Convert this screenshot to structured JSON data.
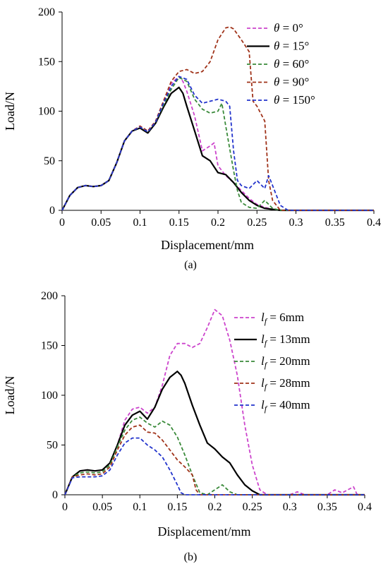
{
  "chart_data": [
    {
      "type": "line",
      "panel_label": "(a)",
      "xlabel": "Displacement/mm",
      "ylabel": "Load/N",
      "xlim": [
        0,
        0.4
      ],
      "ylim": [
        0,
        200
      ],
      "xticks": [
        0,
        0.05,
        0.1,
        0.15,
        0.2,
        0.25,
        0.3,
        0.35,
        0.4
      ],
      "xtick_labels": [
        "0",
        "0.05",
        "0.1",
        "0.15",
        "0.2",
        "0.25",
        "0.3",
        "0.35",
        "0.4"
      ],
      "yticks": [
        0,
        50,
        100,
        150,
        200
      ],
      "ytick_labels": [
        "0",
        "50",
        "100",
        "150",
        "200"
      ],
      "grid": false,
      "legend_position": "top-right",
      "series": [
        {
          "name": "θ = 0°",
          "legend_prefix": "θ",
          "legend_suffix": " = 0°",
          "color": "#cc44cc",
          "dash": "dashed",
          "x": [
            0,
            0.01,
            0.02,
            0.03,
            0.04,
            0.05,
            0.06,
            0.07,
            0.08,
            0.09,
            0.1,
            0.11,
            0.12,
            0.13,
            0.14,
            0.15,
            0.155,
            0.16,
            0.17,
            0.18,
            0.19,
            0.195,
            0.2,
            0.21,
            0.22,
            0.23,
            0.24,
            0.25,
            0.26,
            0.27,
            0.28,
            0.3,
            0.4
          ],
          "y": [
            0,
            15,
            23,
            25,
            24,
            25,
            30,
            48,
            70,
            80,
            85,
            80,
            90,
            110,
            128,
            135,
            130,
            120,
            95,
            60,
            65,
            68,
            45,
            35,
            28,
            20,
            12,
            6,
            3,
            1,
            0,
            0,
            0
          ]
        },
        {
          "name": "θ = 15°",
          "legend_prefix": "θ",
          "legend_suffix": " = 15°",
          "color": "#000000",
          "dash": "solid",
          "x": [
            0,
            0.01,
            0.02,
            0.03,
            0.04,
            0.05,
            0.06,
            0.07,
            0.08,
            0.09,
            0.1,
            0.11,
            0.12,
            0.13,
            0.14,
            0.15,
            0.155,
            0.16,
            0.17,
            0.18,
            0.19,
            0.2,
            0.21,
            0.22,
            0.23,
            0.24,
            0.25,
            0.26,
            0.27,
            0.28,
            0.4
          ],
          "y": [
            0,
            15,
            23,
            25,
            24,
            25,
            30,
            48,
            70,
            80,
            83,
            78,
            88,
            104,
            118,
            124,
            118,
            105,
            80,
            55,
            50,
            38,
            36,
            28,
            18,
            10,
            5,
            2,
            1,
            0,
            0
          ]
        },
        {
          "name": "θ = 60°",
          "legend_prefix": "θ",
          "legend_suffix": " = 60°",
          "color": "#3a8a3a",
          "dash": "dashed",
          "x": [
            0,
            0.01,
            0.02,
            0.03,
            0.04,
            0.05,
            0.06,
            0.07,
            0.08,
            0.09,
            0.1,
            0.11,
            0.12,
            0.13,
            0.14,
            0.15,
            0.16,
            0.17,
            0.18,
            0.19,
            0.2,
            0.205,
            0.21,
            0.22,
            0.225,
            0.23,
            0.24,
            0.25,
            0.26,
            0.27,
            0.28,
            0.4
          ],
          "y": [
            0,
            15,
            23,
            25,
            24,
            25,
            30,
            48,
            70,
            80,
            84,
            79,
            89,
            106,
            122,
            134,
            130,
            112,
            102,
            98,
            100,
            108,
            85,
            40,
            20,
            8,
            3,
            2,
            10,
            2,
            0,
            0
          ]
        },
        {
          "name": "θ = 90°",
          "legend_prefix": "θ",
          "legend_suffix": " = 90°",
          "color": "#a0331a",
          "dash": "dashed",
          "x": [
            0,
            0.01,
            0.02,
            0.03,
            0.04,
            0.05,
            0.06,
            0.07,
            0.08,
            0.09,
            0.1,
            0.11,
            0.12,
            0.13,
            0.14,
            0.15,
            0.16,
            0.17,
            0.18,
            0.19,
            0.2,
            0.21,
            0.215,
            0.22,
            0.23,
            0.24,
            0.245,
            0.25,
            0.26,
            0.265,
            0.27,
            0.28,
            0.4
          ],
          "y": [
            0,
            15,
            23,
            25,
            24,
            25,
            30,
            48,
            70,
            80,
            85,
            80,
            90,
            110,
            130,
            140,
            142,
            138,
            140,
            150,
            172,
            184,
            185,
            183,
            172,
            160,
            110,
            105,
            90,
            30,
            10,
            0,
            0
          ]
        },
        {
          "name": "θ = 150°",
          "legend_prefix": "θ",
          "legend_suffix": " = 150°",
          "color": "#2233cc",
          "dash": "dashed",
          "x": [
            0,
            0.01,
            0.02,
            0.03,
            0.04,
            0.05,
            0.06,
            0.07,
            0.08,
            0.09,
            0.1,
            0.11,
            0.12,
            0.13,
            0.14,
            0.15,
            0.16,
            0.17,
            0.18,
            0.19,
            0.2,
            0.21,
            0.215,
            0.22,
            0.225,
            0.23,
            0.24,
            0.25,
            0.26,
            0.265,
            0.27,
            0.28,
            0.29,
            0.4
          ],
          "y": [
            0,
            15,
            23,
            25,
            24,
            25,
            30,
            48,
            70,
            80,
            84,
            79,
            89,
            108,
            125,
            135,
            132,
            116,
            108,
            110,
            112,
            110,
            105,
            60,
            30,
            25,
            22,
            30,
            22,
            35,
            25,
            5,
            0,
            0
          ]
        }
      ]
    },
    {
      "type": "line",
      "panel_label": "(b)",
      "xlabel": "Displacement/mm",
      "ylabel": "Load/N",
      "xlim": [
        0,
        0.4
      ],
      "ylim": [
        0,
        200
      ],
      "xticks": [
        0,
        0.05,
        0.1,
        0.15,
        0.2,
        0.25,
        0.3,
        0.35,
        0.4
      ],
      "xtick_labels": [
        "0",
        "0.05",
        "0.1",
        "0.15",
        "0.2",
        "0.25",
        "0.3",
        "0.35",
        "0.4"
      ],
      "yticks": [
        0,
        50,
        100,
        150,
        200
      ],
      "ytick_labels": [
        "0",
        "50",
        "100",
        "150",
        "200"
      ],
      "grid": false,
      "legend_position": "top-right",
      "series": [
        {
          "name": "lf = 6mm",
          "legend_prefix": "l",
          "legend_sub": "f",
          "legend_suffix": " = 6mm",
          "color": "#cc44cc",
          "dash": "dashed",
          "x": [
            0,
            0.01,
            0.02,
            0.03,
            0.04,
            0.05,
            0.06,
            0.07,
            0.08,
            0.09,
            0.1,
            0.11,
            0.12,
            0.13,
            0.14,
            0.15,
            0.16,
            0.17,
            0.18,
            0.19,
            0.2,
            0.21,
            0.22,
            0.23,
            0.24,
            0.25,
            0.26,
            0.27,
            0.3,
            0.31,
            0.32,
            0.35,
            0.36,
            0.37,
            0.38,
            0.385,
            0.39,
            0.4
          ],
          "y": [
            0,
            18,
            24,
            25,
            24,
            25,
            32,
            50,
            75,
            86,
            88,
            82,
            88,
            110,
            140,
            152,
            152,
            148,
            152,
            168,
            186,
            180,
            155,
            120,
            70,
            30,
            5,
            0,
            0,
            3,
            0,
            0,
            5,
            2,
            6,
            8,
            0,
            0
          ]
        },
        {
          "name": "lf = 13mm",
          "legend_prefix": "l",
          "legend_sub": "f",
          "legend_suffix": " = 13mm",
          "color": "#000000",
          "dash": "solid",
          "x": [
            0,
            0.01,
            0.02,
            0.03,
            0.04,
            0.05,
            0.06,
            0.07,
            0.08,
            0.09,
            0.1,
            0.11,
            0.12,
            0.13,
            0.14,
            0.15,
            0.155,
            0.16,
            0.17,
            0.18,
            0.19,
            0.2,
            0.21,
            0.22,
            0.23,
            0.24,
            0.25,
            0.26,
            0.27,
            0.4
          ],
          "y": [
            0,
            18,
            24,
            25,
            24,
            25,
            32,
            50,
            70,
            80,
            84,
            76,
            88,
            106,
            118,
            124,
            120,
            112,
            90,
            70,
            52,
            46,
            38,
            32,
            20,
            10,
            4,
            0,
            0,
            0
          ]
        },
        {
          "name": "lf = 20mm",
          "legend_prefix": "l",
          "legend_sub": "f",
          "legend_suffix": " = 20mm",
          "color": "#3a8a3a",
          "dash": "dashed",
          "x": [
            0,
            0.01,
            0.02,
            0.03,
            0.04,
            0.05,
            0.06,
            0.07,
            0.08,
            0.09,
            0.1,
            0.11,
            0.12,
            0.13,
            0.14,
            0.15,
            0.16,
            0.17,
            0.18,
            0.19,
            0.2,
            0.21,
            0.22,
            0.23,
            0.4
          ],
          "y": [
            0,
            18,
            22,
            23,
            22,
            23,
            30,
            48,
            65,
            75,
            78,
            72,
            68,
            74,
            70,
            58,
            40,
            20,
            2,
            0,
            5,
            10,
            3,
            0,
            0
          ]
        },
        {
          "name": "lf = 28mm",
          "legend_prefix": "l",
          "legend_sub": "f",
          "legend_suffix": " = 28mm",
          "color": "#a0331a",
          "dash": "dashed",
          "x": [
            0,
            0.01,
            0.02,
            0.03,
            0.04,
            0.05,
            0.06,
            0.07,
            0.08,
            0.09,
            0.1,
            0.11,
            0.12,
            0.13,
            0.14,
            0.15,
            0.16,
            0.17,
            0.175,
            0.18,
            0.4
          ],
          "y": [
            0,
            18,
            20,
            21,
            20,
            21,
            28,
            45,
            60,
            68,
            70,
            63,
            62,
            55,
            45,
            35,
            28,
            20,
            5,
            0,
            0
          ]
        },
        {
          "name": "lf = 40mm",
          "legend_prefix": "l",
          "legend_sub": "f",
          "legend_suffix": " = 40mm",
          "color": "#2233cc",
          "dash": "dashed",
          "x": [
            0,
            0.01,
            0.02,
            0.03,
            0.04,
            0.05,
            0.06,
            0.07,
            0.08,
            0.09,
            0.1,
            0.11,
            0.12,
            0.13,
            0.14,
            0.15,
            0.155,
            0.16,
            0.4
          ],
          "y": [
            0,
            17,
            18,
            18,
            18,
            19,
            25,
            40,
            52,
            57,
            57,
            50,
            45,
            38,
            25,
            10,
            2,
            0,
            0
          ]
        }
      ]
    }
  ]
}
